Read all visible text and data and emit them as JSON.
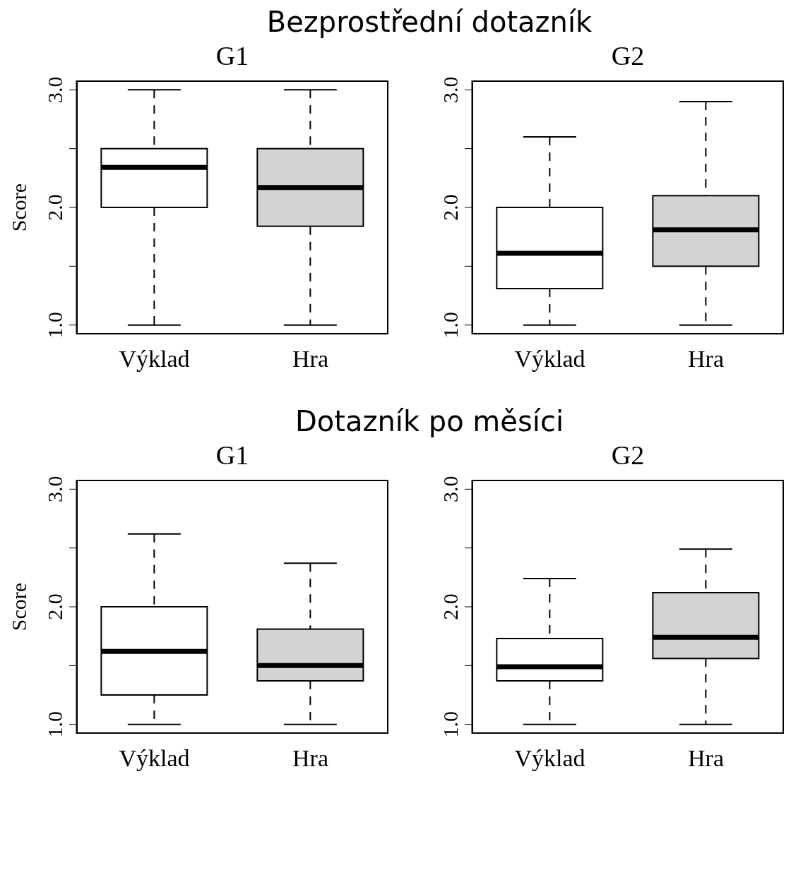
{
  "chart_data": [
    {
      "type": "box",
      "title": "G1",
      "ylabel": "Score",
      "annotations": [
        "Bezprostřední dotazník"
      ],
      "categories": [
        "Výklad",
        "Hra"
      ],
      "colors": [
        "#ffffff",
        "#d3d3d3"
      ],
      "ylim": [
        0.92,
        3.08
      ],
      "yticks": [
        {
          "value": 1,
          "label": "1.0"
        },
        {
          "value": 1.5,
          "label": null
        },
        {
          "value": 2,
          "label": "2.0"
        },
        {
          "value": 2.5,
          "label": null
        },
        {
          "value": 3,
          "label": "3.0"
        }
      ],
      "boxes": [
        {
          "low": 1.0,
          "q1": 2.0,
          "median": 2.34,
          "q3": 2.5,
          "high": 3.0
        },
        {
          "low": 1.0,
          "q1": 1.84,
          "median": 2.17,
          "q3": 2.5,
          "high": 3.0
        }
      ]
    },
    {
      "type": "box",
      "title": "G2",
      "categories": [
        "Výklad",
        "Hra"
      ],
      "colors": [
        "#ffffff",
        "#d3d3d3"
      ],
      "ylim": [
        0.92,
        3.08
      ],
      "yticks": [
        {
          "value": 1,
          "label": "1.0"
        },
        {
          "value": 1.5,
          "label": null
        },
        {
          "value": 2,
          "label": "2.0"
        },
        {
          "value": 2.5,
          "label": null
        },
        {
          "value": 3,
          "label": "3.0"
        }
      ],
      "boxes": [
        {
          "low": 1.0,
          "q1": 1.31,
          "median": 1.61,
          "q3": 2.0,
          "high": 2.6
        },
        {
          "low": 1.0,
          "q1": 1.5,
          "median": 1.81,
          "q3": 2.1,
          "high": 2.9
        }
      ]
    },
    {
      "type": "box",
      "title": "G1",
      "ylabel": "Score",
      "annotations": [
        "Dotazník po měsíci"
      ],
      "categories": [
        "Výklad",
        "Hra"
      ],
      "colors": [
        "#ffffff",
        "#d3d3d3"
      ],
      "ylim": [
        0.92,
        3.08
      ],
      "yticks": [
        {
          "value": 1,
          "label": "1.0"
        },
        {
          "value": 1.5,
          "label": null
        },
        {
          "value": 2,
          "label": "2.0"
        },
        {
          "value": 2.5,
          "label": null
        },
        {
          "value": 3,
          "label": "3.0"
        }
      ],
      "boxes": [
        {
          "low": 1.0,
          "q1": 1.25,
          "median": 1.62,
          "q3": 2.0,
          "high": 2.62
        },
        {
          "low": 1.0,
          "q1": 1.37,
          "median": 1.5,
          "q3": 1.81,
          "high": 2.37
        }
      ]
    },
    {
      "type": "box",
      "title": "G2",
      "categories": [
        "Výklad",
        "Hra"
      ],
      "colors": [
        "#ffffff",
        "#d3d3d3"
      ],
      "ylim": [
        0.92,
        3.08
      ],
      "yticks": [
        {
          "value": 1,
          "label": "1.0"
        },
        {
          "value": 1.5,
          "label": null
        },
        {
          "value": 2,
          "label": "2.0"
        },
        {
          "value": 2.5,
          "label": null
        },
        {
          "value": 3,
          "label": "3.0"
        }
      ],
      "boxes": [
        {
          "low": 1.0,
          "q1": 1.37,
          "median": 1.49,
          "q3": 1.73,
          "high": 2.24
        },
        {
          "low": 1.0,
          "q1": 1.56,
          "median": 1.74,
          "q3": 2.12,
          "high": 2.49
        }
      ]
    }
  ]
}
